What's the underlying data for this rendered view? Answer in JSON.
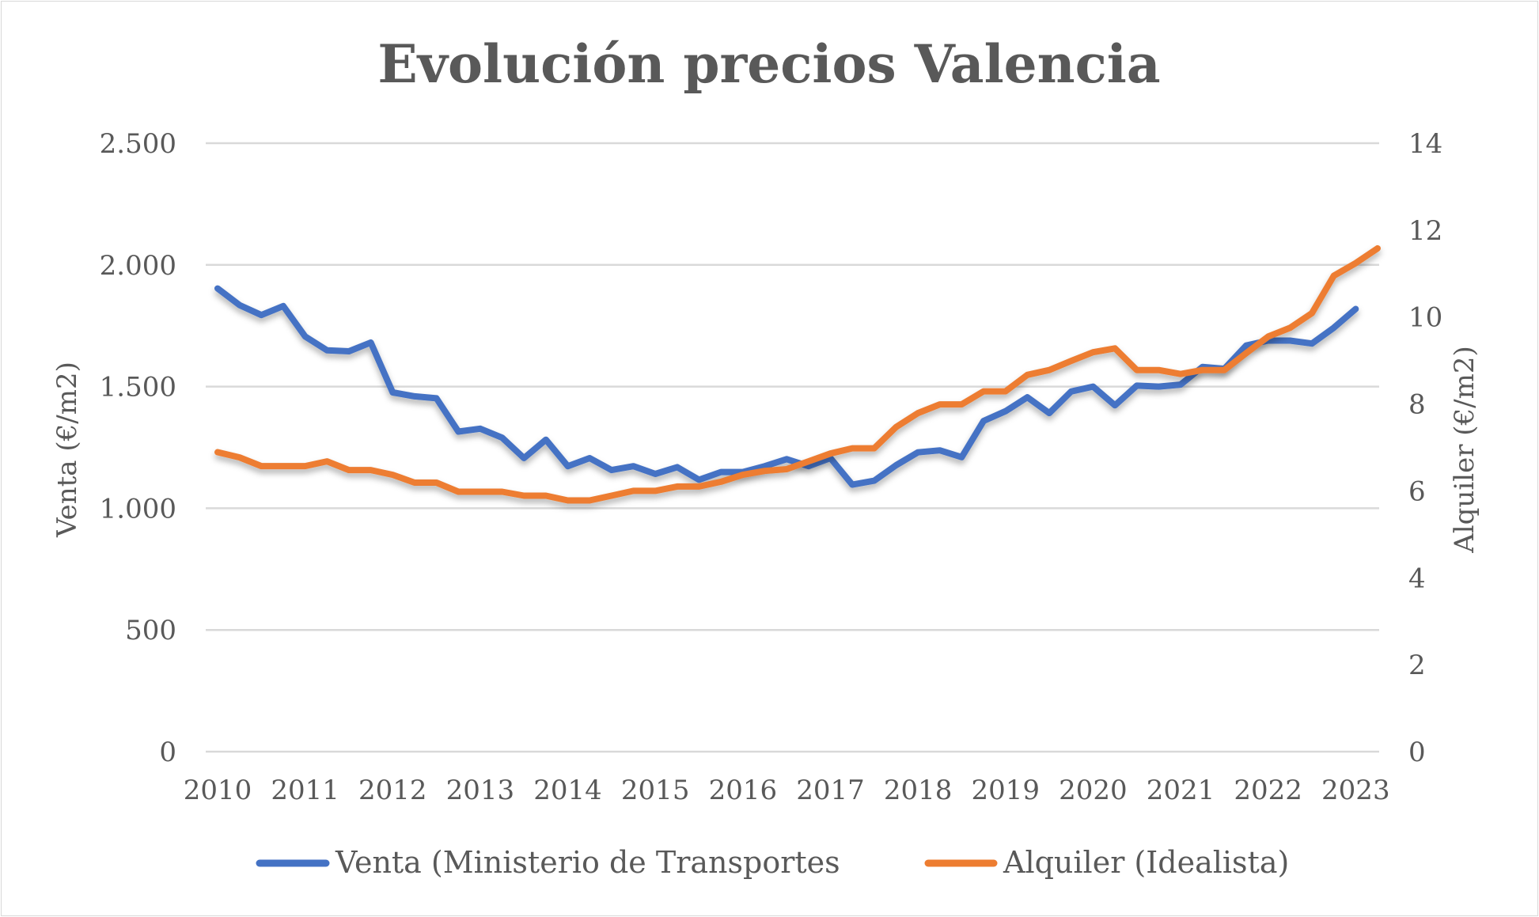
{
  "chart_data": {
    "type": "line",
    "title": "Evolución precios Valencia",
    "xlabel": "",
    "ylabel": "Venta (€/m2)",
    "y2label": "Alquiler (€/m2)",
    "x_tick_labels": [
      "2010",
      "2011",
      "2012",
      "2013",
      "2014",
      "2015",
      "2016",
      "2017",
      "2018",
      "2019",
      "2020",
      "2021",
      "2022",
      "2023"
    ],
    "ylim": [
      0,
      2500
    ],
    "y_ticks": [
      0,
      500,
      1000,
      1500,
      2000,
      2500
    ],
    "y_tick_labels": [
      "0",
      "500",
      "1.000",
      "1.500",
      "2.000",
      "2.500"
    ],
    "y2lim": [
      0,
      14
    ],
    "y2_ticks": [
      0,
      2,
      4,
      6,
      8,
      10,
      12,
      14
    ],
    "y2_tick_labels": [
      "0",
      "2",
      "4",
      "6",
      "8",
      "10",
      "12",
      "14"
    ],
    "grid": true,
    "legend_position": "bottom",
    "series": [
      {
        "name": "Venta (Ministerio de Transportes",
        "axis": "left",
        "color": "#4472C4",
        "values": [
          1903,
          1835,
          1794,
          1831,
          1706,
          1649,
          1645,
          1681,
          1476,
          1460,
          1452,
          1315,
          1327,
          1290,
          1206,
          1282,
          1173,
          1206,
          1157,
          1173,
          1141,
          1169,
          1117,
          1149,
          1149,
          1173,
          1202,
          1173,
          1206,
          1097,
          1113,
          1177,
          1230,
          1238,
          1210,
          1359,
          1399,
          1456,
          1391,
          1480,
          1500,
          1423,
          1504,
          1500,
          1508,
          1581,
          1573,
          1669,
          1689,
          1689,
          1677,
          1742,
          1819
        ]
      },
      {
        "name": "Alquiler (Idealista)",
        "axis": "right",
        "color": "#ED7D31",
        "values": [
          6.89,
          6.77,
          6.57,
          6.57,
          6.57,
          6.68,
          6.48,
          6.48,
          6.37,
          6.19,
          6.19,
          5.98,
          5.98,
          5.98,
          5.89,
          5.89,
          5.78,
          5.78,
          5.89,
          6.0,
          6.0,
          6.1,
          6.1,
          6.21,
          6.37,
          6.46,
          6.5,
          6.68,
          6.86,
          6.98,
          6.98,
          7.47,
          7.79,
          7.99,
          7.99,
          8.29,
          8.29,
          8.67,
          8.78,
          8.99,
          9.19,
          9.28,
          8.78,
          8.78,
          8.69,
          8.78,
          8.78,
          9.17,
          9.55,
          9.75,
          10.09,
          10.95,
          11.24,
          11.58
        ]
      }
    ]
  }
}
